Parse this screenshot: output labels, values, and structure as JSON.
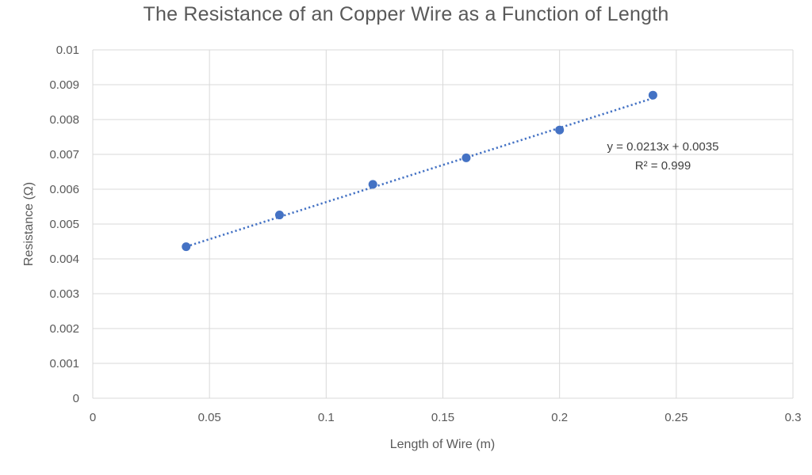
{
  "chart_data": {
    "type": "scatter",
    "title": "The Resistance of an Copper Wire as a Function of Length",
    "xlabel": "Length of Wire (m)",
    "ylabel": "Resistance (Ω)",
    "xlim": [
      0,
      0.3
    ],
    "ylim": [
      0,
      0.01
    ],
    "x_ticks": [
      "0",
      "0.05",
      "0.1",
      "0.15",
      "0.2",
      "0.25",
      "0.3"
    ],
    "y_ticks": [
      "0",
      "0.001",
      "0.002",
      "0.003",
      "0.004",
      "0.005",
      "0.006",
      "0.007",
      "0.008",
      "0.009",
      "0.01"
    ],
    "grid": true,
    "legend": "none",
    "series": [
      {
        "x": [
          0.04,
          0.08,
          0.12,
          0.16,
          0.2,
          0.24
        ],
        "y": [
          0.00435,
          0.00526,
          0.00614,
          0.0069,
          0.0077,
          0.0087
        ],
        "color": "#4472C4"
      }
    ],
    "trendline": {
      "type": "linear",
      "slope": 0.0213,
      "intercept": 0.0035,
      "x_range": [
        0.04,
        0.24
      ],
      "style": "dotted",
      "color": "#4472C4",
      "equation_text": "y = 0.0213x + 0.0035",
      "r2_text": "R² = 0.999"
    },
    "colors": {
      "gridline": "#d9d9d9",
      "text": "#595959"
    }
  }
}
